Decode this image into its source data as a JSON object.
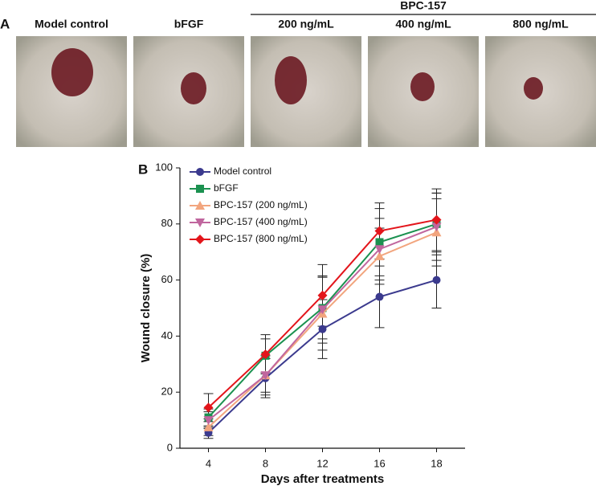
{
  "panel_a": {
    "label": "A",
    "group_label": "BPC-157",
    "photos": [
      {
        "caption": "Model control"
      },
      {
        "caption": "bFGF"
      },
      {
        "caption": "200 ng/mL"
      },
      {
        "caption": "400 ng/mL"
      },
      {
        "caption": "800 ng/mL"
      }
    ]
  },
  "panel_b": {
    "label": "B"
  },
  "chart_data": {
    "type": "line",
    "xlabel": "Days after treatments",
    "ylabel": "Wound closure (%)",
    "categories": [
      "4",
      "8",
      "12",
      "16",
      "18"
    ],
    "ylim": [
      0,
      100
    ],
    "yticks": [
      0,
      20,
      40,
      60,
      80,
      100
    ],
    "legend": "upper left",
    "series": [
      {
        "name": "Model control",
        "color": "#3b3a8e",
        "marker": "circle",
        "values": [
          5.5,
          25,
          42.5,
          54,
          60
        ],
        "errors": [
          2,
          7,
          10.5,
          11,
          10
        ]
      },
      {
        "name": "bFGF",
        "color": "#1b9150",
        "marker": "square",
        "values": [
          11,
          33,
          50,
          73.5,
          80
        ],
        "errors": [
          3,
          6,
          11,
          12,
          11
        ]
      },
      {
        "name": "BPC-157 (200 ng/mL)",
        "color": "#f2a57e",
        "marker": "triangle-up",
        "values": [
          7.5,
          26,
          48,
          68.5,
          77
        ],
        "errors": [
          3,
          6,
          13,
          10,
          12
        ]
      },
      {
        "name": "BPC-157 (400 ng/mL)",
        "color": "#c0669e",
        "marker": "triangle-down",
        "values": [
          10,
          26,
          49.5,
          71,
          79
        ],
        "errors": [
          3,
          7,
          12,
          11,
          12
        ]
      },
      {
        "name": "BPC-157 (800 ng/mL)",
        "color": "#e3151b",
        "marker": "diamond",
        "values": [
          14.5,
          33.5,
          54.5,
          77.5,
          81.5
        ],
        "errors": [
          5,
          7,
          11,
          10,
          11
        ]
      }
    ]
  }
}
